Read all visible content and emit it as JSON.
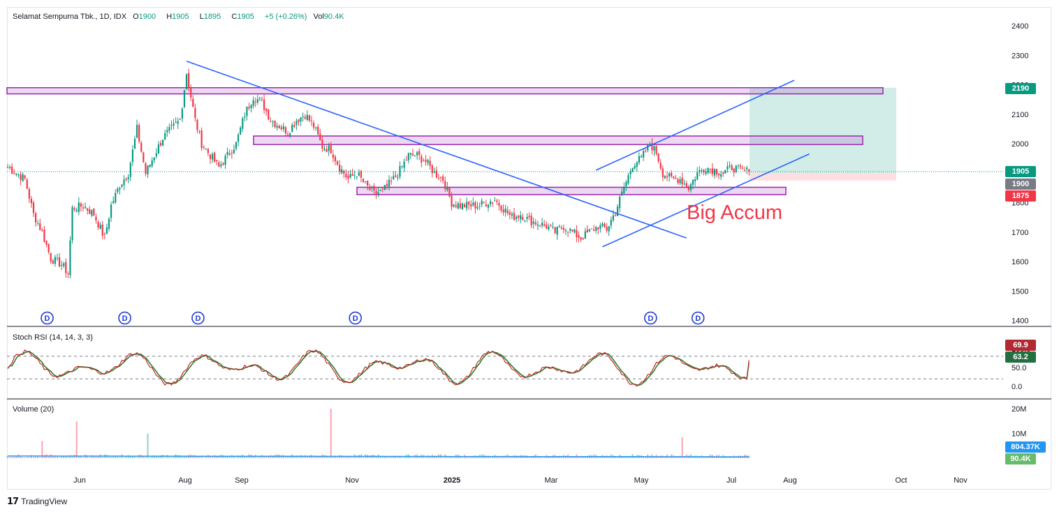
{
  "header": {
    "symbol": "Selamat Sempurna Tbk., 1D, IDX",
    "open_label": "O",
    "open": "1900",
    "high_label": "H",
    "high": "1905",
    "low_label": "L",
    "low": "1895",
    "close_label": "C",
    "close": "1905",
    "change": "+5 (+0.26%)",
    "vol_label": "Vol",
    "vol": "90.4K"
  },
  "colors": {
    "up": "#089981",
    "down": "#f23645",
    "trend": "#2962ff",
    "zone": "#9c27b0",
    "volume_ma": "#2196f3"
  },
  "price_tags": {
    "target": "2190",
    "last": "1905",
    "entry": "1900",
    "stop": "1875"
  },
  "annotation": {
    "text": "Big Accum"
  },
  "dividend_marker": "D",
  "stoch": {
    "title": "Stoch RSI (14, 14, 3, 3)",
    "k_value": "69.9",
    "d_value": "63.2",
    "ticks": [
      "100.0",
      "50.0",
      "0.0"
    ]
  },
  "volume": {
    "title": "Volume (20)",
    "ma_value": "804.37K",
    "last_value": "90.4K",
    "ticks": [
      "20M",
      "10M"
    ]
  },
  "branding": {
    "name": "TradingView"
  },
  "chart_data": {
    "type": "candlestick",
    "title": "Selamat Sempurna Tbk., 1D, IDX",
    "y_ticks": [
      2400,
      2300,
      2200,
      2100,
      2000,
      1900,
      1800,
      1700,
      1600,
      1500,
      1400
    ],
    "ylim": [
      1375,
      2440
    ],
    "x_ticks": [
      "Jun",
      "Aug",
      "Sep",
      "Nov",
      "2025",
      "Mar",
      "May",
      "Jul",
      "Aug",
      "Oct",
      "Nov"
    ],
    "price_keypoints": [
      [
        0,
        1920
      ],
      [
        8,
        1880
      ],
      [
        12,
        1760
      ],
      [
        16,
        1700
      ],
      [
        20,
        1610
      ],
      [
        25,
        1590
      ],
      [
        28,
        1560
      ],
      [
        30,
        1780
      ],
      [
        35,
        1790
      ],
      [
        40,
        1760
      ],
      [
        45,
        1680
      ],
      [
        48,
        1790
      ],
      [
        52,
        1860
      ],
      [
        56,
        1900
      ],
      [
        60,
        2050
      ],
      [
        64,
        1900
      ],
      [
        68,
        1960
      ],
      [
        72,
        2020
      ],
      [
        76,
        2050
      ],
      [
        80,
        2080
      ],
      [
        83,
        2240
      ],
      [
        87,
        2080
      ],
      [
        90,
        2000
      ],
      [
        94,
        1960
      ],
      [
        98,
        1920
      ],
      [
        102,
        1960
      ],
      [
        106,
        2000
      ],
      [
        110,
        2100
      ],
      [
        114,
        2160
      ],
      [
        118,
        2140
      ],
      [
        122,
        2080
      ],
      [
        126,
        2060
      ],
      [
        130,
        2040
      ],
      [
        134,
        2080
      ],
      [
        138,
        2100
      ],
      [
        142,
        2060
      ],
      [
        146,
        1990
      ],
      [
        150,
        1980
      ],
      [
        154,
        1920
      ],
      [
        158,
        1880
      ],
      [
        162,
        1900
      ],
      [
        166,
        1860
      ],
      [
        170,
        1830
      ],
      [
        174,
        1840
      ],
      [
        178,
        1870
      ],
      [
        182,
        1910
      ],
      [
        186,
        1960
      ],
      [
        190,
        1960
      ],
      [
        194,
        1940
      ],
      [
        198,
        1900
      ],
      [
        202,
        1880
      ],
      [
        206,
        1800
      ],
      [
        210,
        1790
      ],
      [
        214,
        1790
      ],
      [
        218,
        1790
      ],
      [
        222,
        1800
      ],
      [
        226,
        1810
      ],
      [
        230,
        1780
      ],
      [
        234,
        1750
      ],
      [
        238,
        1760
      ],
      [
        242,
        1740
      ],
      [
        246,
        1730
      ],
      [
        250,
        1720
      ],
      [
        254,
        1700
      ],
      [
        258,
        1720
      ],
      [
        262,
        1700
      ],
      [
        266,
        1680
      ],
      [
        270,
        1700
      ],
      [
        274,
        1720
      ],
      [
        278,
        1710
      ],
      [
        282,
        1770
      ],
      [
        286,
        1850
      ],
      [
        290,
        1930
      ],
      [
        294,
        1950
      ],
      [
        298,
        2000
      ],
      [
        301,
        1970
      ],
      [
        304,
        1900
      ],
      [
        308,
        1880
      ],
      [
        312,
        1880
      ],
      [
        316,
        1850
      ],
      [
        320,
        1900
      ],
      [
        324,
        1920
      ],
      [
        328,
        1910
      ],
      [
        332,
        1900
      ],
      [
        336,
        1920
      ],
      [
        340,
        1910
      ],
      [
        344,
        1905
      ]
    ],
    "candle_count": 345,
    "last_price": 1905,
    "zones": [
      {
        "name": "resistance-zone-top",
        "from": 2169,
        "to": 2190
      },
      {
        "name": "resistance-zone-mid",
        "from": 1997,
        "to": 2026
      },
      {
        "name": "support-zone",
        "from": 1827,
        "to": 1852
      }
    ],
    "trendlines": [
      {
        "name": "downtrend-line",
        "from": [
          83,
          2280
        ],
        "to": [
          315,
          1680
        ]
      },
      {
        "name": "channel-upper-line",
        "from": [
          273,
          1910
        ],
        "to": [
          365,
          2215
        ]
      },
      {
        "name": "channel-lower-line",
        "from": [
          276,
          1650
        ],
        "to": [
          372,
          1965
        ]
      }
    ],
    "position": {
      "entry": 1900,
      "target": 2190,
      "stop": 1875
    },
    "dividend_markers_at": [
      18,
      54,
      88,
      161,
      298,
      320
    ],
    "stoch_rsi": {
      "k_last": 69.9,
      "d_last": 63.2,
      "upper": 80,
      "lower": 20
    },
    "volume_typical": 800000,
    "volume_spikes": [
      [
        32,
        14800000
      ],
      [
        150,
        20000000
      ],
      [
        313,
        8500000
      ],
      [
        65,
        10000000
      ],
      [
        16,
        7000000
      ]
    ]
  }
}
